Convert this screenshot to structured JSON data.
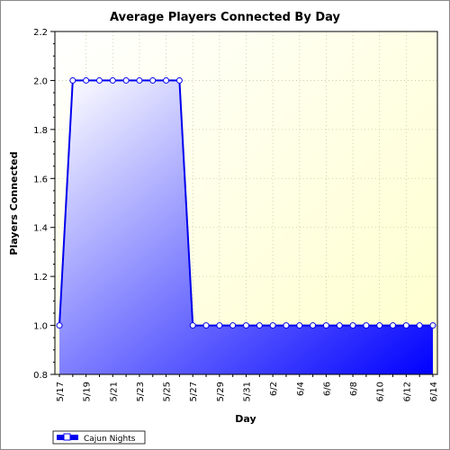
{
  "chart_data": {
    "type": "area",
    "title": "Average Players Connected By Day",
    "xlabel": "Day",
    "ylabel": "Players Connected",
    "ylim": [
      0.8,
      2.2
    ],
    "yticks": [
      "0.8",
      "1.0",
      "1.2",
      "1.4",
      "1.6",
      "1.8",
      "2.0",
      "2.2"
    ],
    "x": [
      "5/17",
      "5/18",
      "5/19",
      "5/20",
      "5/21",
      "5/22",
      "5/23",
      "5/24",
      "5/25",
      "5/26",
      "5/27",
      "5/28",
      "5/29",
      "5/30",
      "5/31",
      "6/1",
      "6/2",
      "6/3",
      "6/4",
      "6/5",
      "6/6",
      "6/7",
      "6/8",
      "6/9",
      "6/10",
      "6/11",
      "6/12",
      "6/13",
      "6/14"
    ],
    "xtick_labels": [
      "5/17",
      "5/19",
      "5/21",
      "5/23",
      "5/25",
      "5/27",
      "5/29",
      "5/31",
      "6/2",
      "6/4",
      "6/6",
      "6/8",
      "6/10",
      "6/12",
      "6/14"
    ],
    "series": [
      {
        "name": "Cajun Nights",
        "values": [
          1.0,
          2.0,
          2.0,
          2.0,
          2.0,
          2.0,
          2.0,
          2.0,
          2.0,
          2.0,
          1.0,
          1.0,
          1.0,
          1.0,
          1.0,
          1.0,
          1.0,
          1.0,
          1.0,
          1.0,
          1.0,
          1.0,
          1.0,
          1.0,
          1.0,
          1.0,
          1.0,
          1.0,
          1.0
        ]
      }
    ],
    "grid": true,
    "legend_position": "bottom-left",
    "colors": {
      "line": "#0000ee",
      "fill_start": "#ffffff",
      "fill_end": "#0000ff",
      "plot_bg_start": "#ffffff",
      "plot_bg_end": "#ffffcc",
      "grid": "#c8c8a0"
    }
  }
}
